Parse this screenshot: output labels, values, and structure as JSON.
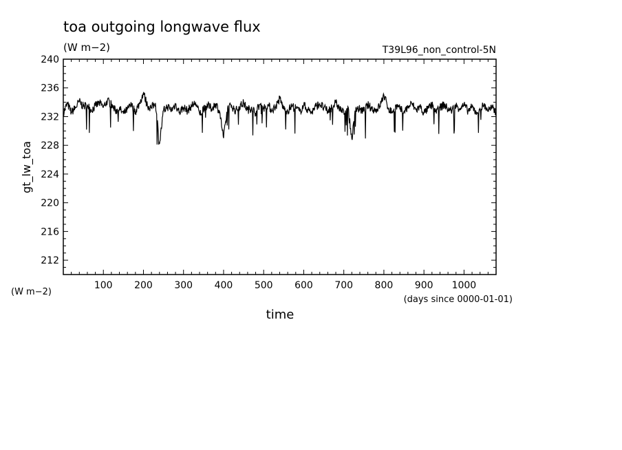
{
  "chart_data": {
    "type": "line",
    "title": "toa outgoing longwave flux",
    "subtitle": "(W m−2)",
    "experiment": "T39L96_non_control-5N",
    "ylabel": "gt_lw_toa",
    "yunits": "(W m−2)",
    "xlabel": "time",
    "xunits": "(days since 0000-01-01)",
    "xlim": [
      0,
      1080
    ],
    "ylim": [
      210,
      240
    ],
    "x_ticks": [
      100,
      200,
      300,
      400,
      500,
      600,
      700,
      800,
      900,
      1000
    ],
    "y_ticks": [
      212,
      216,
      220,
      224,
      228,
      232,
      236,
      240
    ],
    "grid": false,
    "legend": "none",
    "line_color": "#000000",
    "series": [
      {
        "x": [
          0,
          10,
          20,
          30,
          40,
          50,
          60,
          70,
          80,
          90,
          100,
          110,
          120,
          130,
          140,
          150,
          160,
          170,
          180,
          190,
          200,
          210,
          220,
          230,
          240,
          250,
          260,
          270,
          280,
          290,
          300,
          310,
          320,
          330,
          340,
          350,
          360,
          370,
          380,
          390,
          400,
          410,
          420,
          430,
          440,
          450,
          460,
          470,
          480,
          490,
          500,
          510,
          520,
          530,
          540,
          550,
          560,
          570,
          580,
          590,
          600,
          610,
          620,
          630,
          640,
          650,
          660,
          670,
          680,
          690,
          700,
          710,
          720,
          730,
          740,
          750,
          760,
          770,
          780,
          790,
          800,
          810,
          820,
          830,
          840,
          850,
          860,
          870,
          880,
          890,
          900,
          910,
          920,
          930,
          940,
          950,
          960,
          970,
          980,
          990,
          1000,
          1010,
          1020,
          1030,
          1040,
          1050,
          1060,
          1070,
          1080
        ],
        "values": [
          232.5,
          233.8,
          232.6,
          233.2,
          234.1,
          233.4,
          233.6,
          232.9,
          233.5,
          233.9,
          233.3,
          234.2,
          233.7,
          232.8,
          233.1,
          232.4,
          233.0,
          233.6,
          232.7,
          233.8,
          235.3,
          233.5,
          233.2,
          233.9,
          228.2,
          232.8,
          233.4,
          232.9,
          233.7,
          232.6,
          233.3,
          232.8,
          233.5,
          233.9,
          232.4,
          232.9,
          233.6,
          233.1,
          233.8,
          232.7,
          229.0,
          233.2,
          233.5,
          232.8,
          233.4,
          233.9,
          232.9,
          233.3,
          232.5,
          233.7,
          233.2,
          233.6,
          232.9,
          233.4,
          234.5,
          233.1,
          232.8,
          233.5,
          233.2,
          232.7,
          233.6,
          233.0,
          232.6,
          233.4,
          233.8,
          233.2,
          232.7,
          233.3,
          233.9,
          233.1,
          232.5,
          233.4,
          228.9,
          233.2,
          233.0,
          232.8,
          233.6,
          233.1,
          232.9,
          233.5,
          235.0,
          233.3,
          232.6,
          233.5,
          233.0,
          232.7,
          233.3,
          233.8,
          232.9,
          233.4,
          232.5,
          233.1,
          233.6,
          232.8,
          233.2,
          233.7,
          233.0,
          232.9,
          233.5,
          233.2,
          233.6,
          232.8,
          233.3,
          232.6,
          233.1,
          233.6,
          232.9,
          233.2,
          232.6
        ]
      }
    ]
  }
}
